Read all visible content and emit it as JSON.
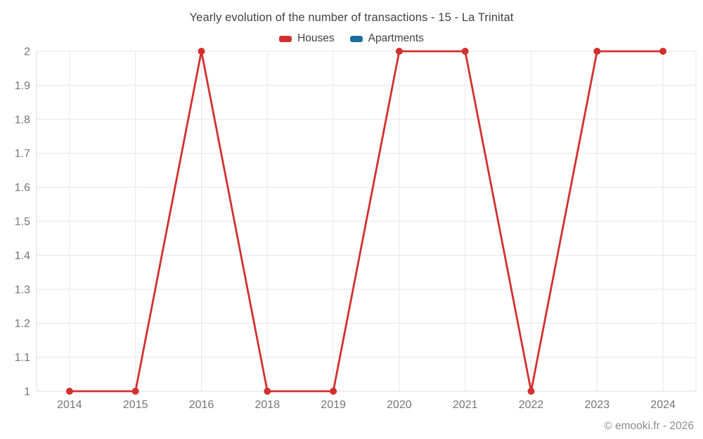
{
  "chart_data": {
    "type": "line",
    "title": "Yearly evolution of the number of transactions - 15 - La Trinitat",
    "categories": [
      "2014",
      "2015",
      "2016",
      "2018",
      "2019",
      "2020",
      "2021",
      "2022",
      "2023",
      "2024"
    ],
    "series": [
      {
        "name": "Houses",
        "color": "#d32f2f",
        "values": [
          1,
          1,
          2,
          1,
          1,
          2,
          2,
          1,
          2,
          2
        ]
      },
      {
        "name": "Apartments",
        "color": "#1a6f9e",
        "values": []
      }
    ],
    "xlabel": "",
    "ylabel": "",
    "ylim": [
      1,
      2
    ],
    "ytick_step": 0.1,
    "grid": true,
    "legend_position": "top",
    "axis_label_color": "#757575",
    "gridline_color": "#e6e6e6",
    "footer": "© emooki.fr - 2026"
  }
}
